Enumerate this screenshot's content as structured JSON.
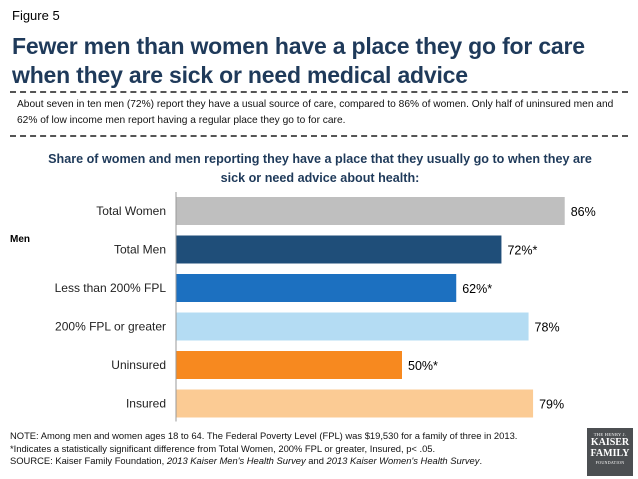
{
  "figure_label": "Figure 5",
  "title": "Fewer men than women have a place they go for care when they are sick or need medical advice",
  "summary": "About seven in ten men (72%) report they have a usual source of care, compared to 86% of women. Only half of uninsured men and 62% of low income men report having a regular place they go to for care.",
  "men_group_label": "Men",
  "chart_data": {
    "type": "bar",
    "orientation": "horizontal",
    "title": "Share of women and men reporting they have a place that they usually go to when they are sick or need advice about health:",
    "xlabel": "",
    "ylabel": "",
    "xlim": [
      0,
      100
    ],
    "grid": false,
    "categories": [
      "Total Women",
      "Total Men",
      "Less than 200% FPL",
      "200% FPL or greater",
      "Uninsured",
      "Insured"
    ],
    "values": [
      86,
      72,
      62,
      78,
      50,
      79
    ],
    "data_labels": [
      "86%",
      "72%*",
      "62%*",
      "78%",
      "50%*",
      "79%"
    ],
    "colors": [
      "#bfbfbf",
      "#1f4e79",
      "#1c70c0",
      "#b4dcf3",
      "#f7891f",
      "#fbcb94"
    ]
  },
  "notes": {
    "note_line": "NOTE: Among men and women ages 18 to 64. The Federal Poverty Level (FPL) was $19,530 for a family of three in 2013.",
    "significance_line": "*Indicates a statistically significant difference from Total Women, 200% FPL or greater, Insured, p< .05.",
    "source_prefix": "SOURCE: Kaiser Family Foundation, ",
    "source_men_survey": "2013 Kaiser Men's Health Survey",
    "source_and": " and ",
    "source_women_survey": "2013 Kaiser Women's Health Survey",
    "source_end": "."
  },
  "logo": {
    "line1": "THE HENRY J.",
    "line2": "KAISER",
    "line3": "FAMILY",
    "line4": "FOUNDATION"
  }
}
